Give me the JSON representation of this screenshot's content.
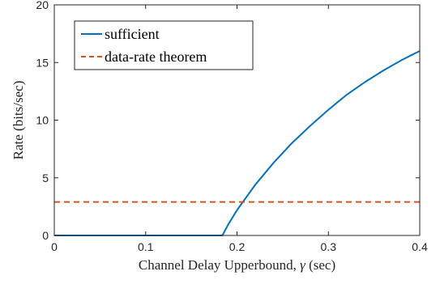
{
  "chart_data": {
    "type": "line",
    "title": "",
    "xlabel_prefix": "Channel Delay Upperbound, ",
    "xlabel_symbol": "γ",
    "xlabel_suffix": " (sec)",
    "ylabel": "Rate (bits/sec)",
    "xlim": [
      0,
      0.4
    ],
    "ylim": [
      0,
      20
    ],
    "xticks": [
      0,
      0.1,
      0.2,
      0.3,
      0.4
    ],
    "xtick_labels": [
      "0",
      "0.1",
      "0.2",
      "0.3",
      "0.4"
    ],
    "yticks": [
      0,
      5,
      10,
      15,
      20
    ],
    "ytick_labels": [
      "0",
      "5",
      "10",
      "15",
      "20"
    ],
    "grid": false,
    "legend_position": "top-left",
    "series": [
      {
        "name": "sufficient",
        "style": "solid",
        "color": "#0072BD",
        "x": [
          0,
          0.184,
          0.19,
          0.2,
          0.21,
          0.22,
          0.24,
          0.26,
          0.28,
          0.3,
          0.32,
          0.34,
          0.36,
          0.38,
          0.4
        ],
        "y": [
          0,
          0,
          0.9,
          2.2,
          3.3,
          4.4,
          6.3,
          8.0,
          9.5,
          10.9,
          12.2,
          13.3,
          14.3,
          15.2,
          16.0
        ]
      },
      {
        "name": "data-rate theorem",
        "style": "dashed",
        "color": "#D95319",
        "x": [
          0,
          0.4
        ],
        "y": [
          2.9,
          2.9
        ]
      }
    ]
  }
}
